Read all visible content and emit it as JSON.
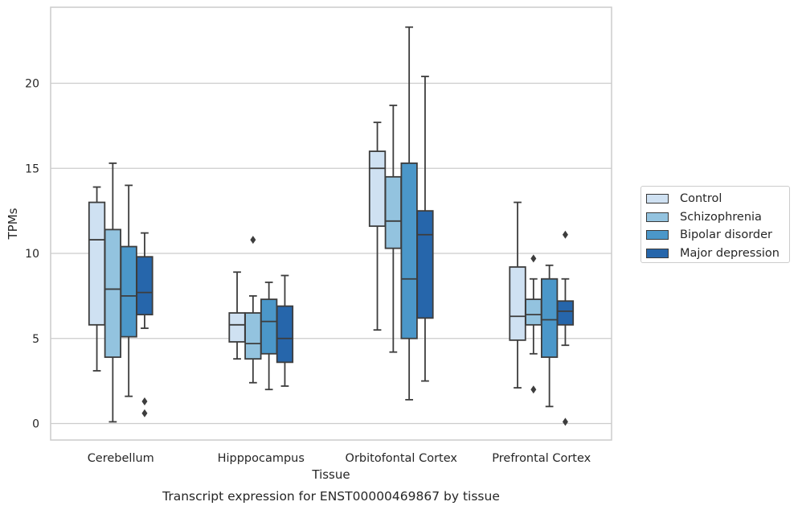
{
  "chart_data": {
    "type": "box",
    "title": "",
    "xlabel": "Tissue",
    "ylabel": "TPMs",
    "caption": "Transcript expression for ENST00000469867 by tissue",
    "ylim": [
      -1,
      24.5
    ],
    "yticks": [
      0,
      5,
      10,
      15,
      20
    ],
    "grid": "horizontal",
    "legend_position": "right",
    "categories": [
      "Cerebellum",
      "Hipppocampus",
      "Orbitofontal Cortex",
      "Prefrontal Cortex"
    ],
    "series": [
      {
        "name": "Control",
        "color": "#cfe1f2",
        "boxes": [
          {
            "min": 3.1,
            "q1": 5.8,
            "median": 10.8,
            "q3": 13.0,
            "max": 13.9,
            "outliers": []
          },
          {
            "min": 3.8,
            "q1": 4.8,
            "median": 5.8,
            "q3": 6.5,
            "max": 8.9,
            "outliers": []
          },
          {
            "min": 5.5,
            "q1": 11.6,
            "median": 15.0,
            "q3": 16.0,
            "max": 17.7,
            "outliers": []
          },
          {
            "min": 2.1,
            "q1": 4.9,
            "median": 6.3,
            "q3": 9.2,
            "max": 13.0,
            "outliers": []
          }
        ]
      },
      {
        "name": "Schizophrenia",
        "color": "#93c3df",
        "boxes": [
          {
            "min": 0.1,
            "q1": 3.9,
            "median": 7.9,
            "q3": 11.4,
            "max": 15.3,
            "outliers": []
          },
          {
            "min": 2.4,
            "q1": 3.8,
            "median": 4.7,
            "q3": 6.5,
            "max": 7.5,
            "outliers": [
              10.8
            ]
          },
          {
            "min": 4.2,
            "q1": 10.3,
            "median": 11.9,
            "q3": 14.5,
            "max": 18.7,
            "outliers": []
          },
          {
            "min": 4.1,
            "q1": 5.8,
            "median": 6.4,
            "q3": 7.3,
            "max": 8.5,
            "outliers": [
              9.7,
              2.0
            ]
          }
        ]
      },
      {
        "name": "Bipolar disorder",
        "color": "#4b97c9",
        "boxes": [
          {
            "min": 1.6,
            "q1": 5.1,
            "median": 7.5,
            "q3": 10.4,
            "max": 14.0,
            "outliers": []
          },
          {
            "min": 2.0,
            "q1": 4.1,
            "median": 6.0,
            "q3": 7.3,
            "max": 8.3,
            "outliers": []
          },
          {
            "min": 1.4,
            "q1": 5.0,
            "median": 8.5,
            "q3": 15.3,
            "max": 23.3,
            "outliers": []
          },
          {
            "min": 1.0,
            "q1": 3.9,
            "median": 6.1,
            "q3": 8.5,
            "max": 9.3,
            "outliers": []
          }
        ]
      },
      {
        "name": "Major depression",
        "color": "#2666ab",
        "boxes": [
          {
            "min": 5.6,
            "q1": 6.4,
            "median": 7.7,
            "q3": 9.8,
            "max": 11.2,
            "outliers": [
              1.3,
              0.6
            ]
          },
          {
            "min": 2.2,
            "q1": 3.6,
            "median": 5.0,
            "q3": 6.9,
            "max": 8.7,
            "outliers": []
          },
          {
            "min": 2.5,
            "q1": 6.2,
            "median": 11.1,
            "q3": 12.5,
            "max": 20.4,
            "outliers": []
          },
          {
            "min": 4.6,
            "q1": 5.8,
            "median": 6.6,
            "q3": 7.2,
            "max": 8.5,
            "outliers": [
              11.1,
              0.1
            ]
          }
        ]
      }
    ]
  }
}
